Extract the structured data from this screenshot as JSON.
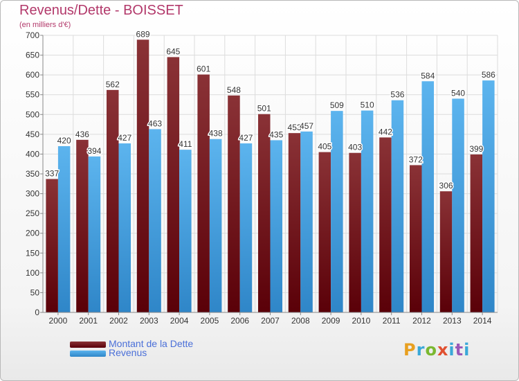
{
  "title": "Revenus/Dette - BOISSET",
  "subtitle": "(en milliers d'€)",
  "legend": {
    "dette_label": "Montant de la Dette",
    "revenus_label": "Revenus"
  },
  "logo_text": "Proxiti",
  "colors": {
    "dette": "#7a2a2e",
    "dette_dark": "#5c0a10",
    "revenus": "#56aee8",
    "revenus_dark": "#2f86c8",
    "title": "#b2386a",
    "legend_text": "#4a6fd8"
  },
  "chart_data": {
    "type": "bar",
    "title": "Revenus/Dette - BOISSET",
    "ylabel": "(en milliers d'€)",
    "xlabel": "",
    "ylim": [
      0,
      700
    ],
    "yticks": [
      0,
      50,
      100,
      150,
      200,
      250,
      300,
      350,
      400,
      450,
      500,
      550,
      600,
      650,
      700
    ],
    "grid": true,
    "legend_position": "bottom-left",
    "categories": [
      "2000",
      "2001",
      "2002",
      "2003",
      "2004",
      "2005",
      "2006",
      "2007",
      "2008",
      "2009",
      "2010",
      "2011",
      "2012",
      "2013",
      "2014"
    ],
    "series": [
      {
        "name": "Montant de la Dette",
        "values": [
          337,
          436,
          562,
          689,
          645,
          601,
          548,
          501,
          453,
          405,
          403,
          442,
          372,
          306,
          399
        ]
      },
      {
        "name": "Revenus",
        "values": [
          420,
          394,
          427,
          463,
          411,
          438,
          427,
          435,
          457,
          509,
          510,
          536,
          584,
          540,
          586
        ]
      }
    ]
  }
}
